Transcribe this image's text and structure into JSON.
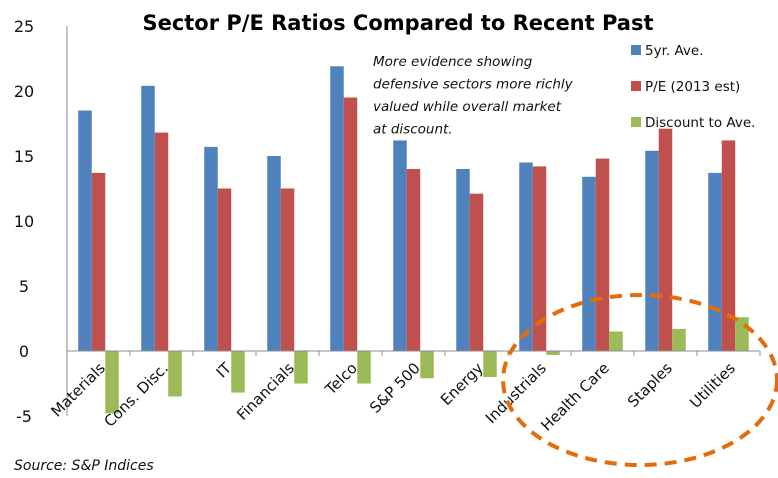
{
  "chart_data": {
    "type": "bar",
    "title": "Sector P/E Ratios Compared to Recent Past",
    "xlabel": "",
    "ylabel": "",
    "ylim": [
      -5,
      25
    ],
    "yticks": [
      25,
      20,
      15,
      10,
      5,
      0,
      -5
    ],
    "grid": false,
    "legend_position": "top-right",
    "categories": [
      "Materials",
      "Cons. Disc.",
      "IT",
      "Financials",
      "Telco",
      "S&P 500",
      "Energy",
      "Industrials",
      "Health Care",
      "Staples",
      "Utilities"
    ],
    "series": [
      {
        "name": "5yr. Ave.",
        "color": "#4f81bd",
        "values": [
          18.5,
          20.4,
          15.7,
          15.0,
          21.9,
          16.2,
          14.0,
          14.5,
          13.4,
          15.4,
          13.7
        ]
      },
      {
        "name": "P/E (2013 est)",
        "color": "#c0504d",
        "values": [
          13.7,
          16.8,
          12.5,
          12.5,
          19.5,
          14.0,
          12.1,
          14.2,
          14.8,
          17.1,
          16.2
        ]
      },
      {
        "name": "Discount to Ave.",
        "color": "#9bbb59",
        "values": [
          -4.8,
          -3.5,
          -3.2,
          -2.5,
          -2.5,
          -2.1,
          -2.0,
          -0.3,
          1.5,
          1.7,
          2.6
        ]
      }
    ],
    "annotations": [
      {
        "type": "text",
        "lines": [
          "More evidence showing",
          "defensive sectors more richly",
          "valued while overall market",
          "at discount."
        ]
      },
      {
        "type": "dashed-ellipse",
        "color": "#e46c0a",
        "highlights": [
          "Health Care",
          "Staples",
          "Utilities"
        ]
      }
    ],
    "source": "Source: S&P Indices"
  }
}
